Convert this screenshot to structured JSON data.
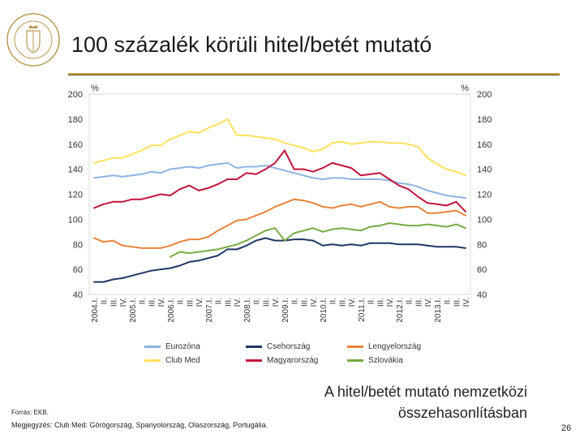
{
  "slide": {
    "title": "100 százalék körüli hitel/betét mutató",
    "subtitle_line1": "A hitel/betét mutató nemzetközi",
    "subtitle_line2": "összehasonlításban",
    "source": "Forrás: EKB.",
    "note": "Megjegyzés: Club Med: Görögország, Spanyolország, Olaszország, Portugália.",
    "page_number": "26"
  },
  "colors": {
    "accent_rule": "#c8a24a",
    "logo_gold": "#b99a55"
  },
  "chart_data": {
    "type": "line",
    "title": "",
    "xlabel": "",
    "ylabel_left": "%",
    "ylabel_right": "%",
    "ylim": [
      40,
      200
    ],
    "yticks": [
      40,
      60,
      80,
      100,
      120,
      140,
      160,
      180,
      200
    ],
    "grid": false,
    "legend_position": "bottom",
    "x": [
      "2004.I.",
      "II.",
      "III.",
      "IV.",
      "2005.I.",
      "II.",
      "III.",
      "IV.",
      "2006.I.",
      "II.",
      "III.",
      "IV.",
      "2007.I.",
      "II.",
      "III.",
      "IV.",
      "2008.I.",
      "II.",
      "III.",
      "IV.",
      "2009.I.",
      "II.",
      "III.",
      "IV.",
      "2010.I.",
      "II.",
      "III.",
      "IV.",
      "2011.I.",
      "II.",
      "III.",
      "IV.",
      "2012.I.",
      "II.",
      "III.",
      "IV.",
      "2013.I.",
      "II.",
      "III.",
      "IV."
    ],
    "series": [
      {
        "name": "Eurozóna",
        "color": "#8db4e2",
        "values": [
          133,
          134,
          135,
          134,
          135,
          136,
          138,
          137,
          140,
          141,
          142,
          141,
          143,
          144,
          145,
          141,
          142,
          142,
          143,
          141,
          139,
          137,
          135,
          133,
          132,
          133,
          133,
          132,
          132,
          132,
          132,
          131,
          129,
          128,
          126,
          123,
          121,
          119,
          118,
          117
        ]
      },
      {
        "name": "Club Med",
        "color": "#ffe15a",
        "values": [
          145,
          147,
          149,
          149,
          152,
          155,
          159,
          159,
          164,
          167,
          170,
          169,
          173,
          176,
          180,
          167,
          167,
          166,
          165,
          164,
          161,
          159,
          157,
          154,
          156,
          161,
          162,
          160,
          161,
          162,
          162,
          161,
          161,
          160,
          158,
          149,
          144,
          140,
          138,
          135
        ]
      },
      {
        "name": "Csehország",
        "color": "#1f3864",
        "values": [
          50,
          50,
          52,
          53,
          55,
          57,
          59,
          60,
          61,
          63,
          66,
          67,
          69,
          71,
          76,
          76,
          79,
          83,
          85,
          83,
          83,
          84,
          84,
          83,
          79,
          80,
          79,
          80,
          79,
          81,
          81,
          81,
          80,
          80,
          80,
          79,
          78,
          78,
          78,
          77
        ]
      },
      {
        "name": "Magyarország",
        "color": "#c0143c",
        "values": [
          109,
          112,
          114,
          114,
          116,
          116,
          118,
          120,
          119,
          124,
          127,
          123,
          125,
          128,
          132,
          132,
          137,
          136,
          140,
          145,
          155,
          140,
          140,
          138,
          141,
          145,
          143,
          141,
          135,
          136,
          137,
          132,
          127,
          124,
          118,
          113,
          112,
          111,
          114,
          106
        ]
      },
      {
        "name": "Lengyelország",
        "color": "#e8843a",
        "values": [
          85,
          82,
          83,
          79,
          78,
          77,
          77,
          77,
          79,
          82,
          84,
          84,
          86,
          91,
          95,
          99,
          100,
          103,
          106,
          110,
          113,
          116,
          115,
          113,
          110,
          109,
          111,
          112,
          110,
          112,
          114,
          110,
          109,
          110,
          110,
          105,
          105,
          106,
          107,
          103
        ]
      },
      {
        "name": "Szlovákia",
        "color": "#77aa44",
        "values": [
          null,
          null,
          null,
          null,
          null,
          null,
          null,
          null,
          70,
          74,
          73,
          74,
          75,
          76,
          78,
          80,
          83,
          87,
          91,
          93,
          83,
          89,
          91,
          93,
          90,
          92,
          93,
          92,
          91,
          94,
          95,
          97,
          96,
          95,
          95,
          96,
          95,
          94,
          96,
          93
        ]
      }
    ]
  }
}
